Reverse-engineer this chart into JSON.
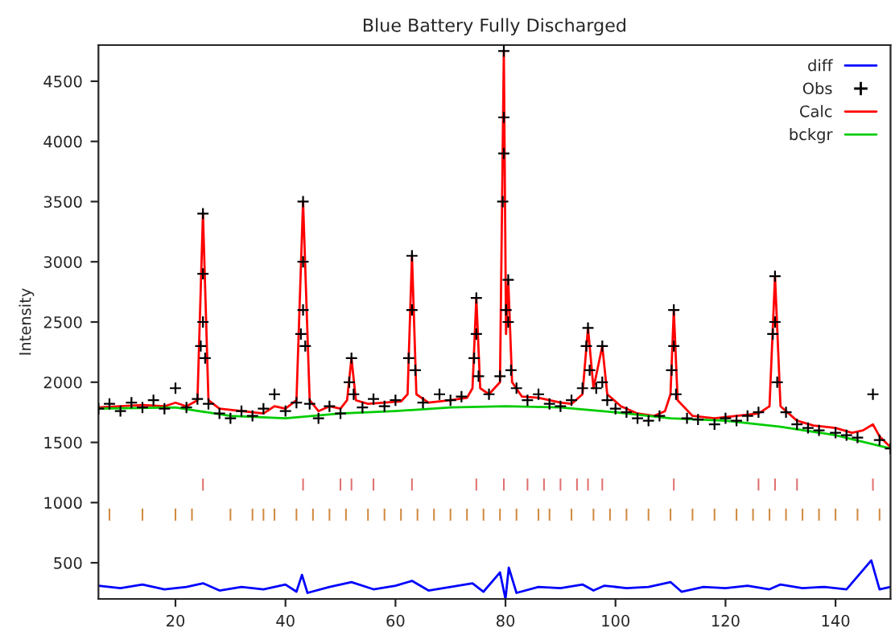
{
  "chart_data": {
    "type": "line",
    "title": "Blue Battery Fully Discharged",
    "ylabel": "Intensity",
    "xlim": [
      6,
      150
    ],
    "ylim": [
      200,
      4800
    ],
    "xticks": [
      20,
      40,
      60,
      80,
      100,
      120,
      140
    ],
    "yticks": [
      500,
      1000,
      1500,
      2000,
      2500,
      3000,
      3500,
      4000,
      4500
    ],
    "grid": false,
    "legend": "top right",
    "series": [
      {
        "name": "diff",
        "color": "#0000ff",
        "x": [
          6,
          10,
          14,
          18,
          22,
          25,
          28,
          32,
          36,
          40,
          42,
          43,
          44,
          48,
          52,
          56,
          60,
          63,
          66,
          70,
          74,
          76,
          79,
          80,
          80.6,
          82,
          86,
          90,
          94,
          96,
          98,
          102,
          106,
          110,
          112,
          116,
          120,
          124,
          128,
          130,
          134,
          138,
          142,
          146.5,
          148,
          150
        ],
        "values": [
          310,
          290,
          320,
          280,
          300,
          330,
          270,
          300,
          280,
          320,
          260,
          400,
          250,
          300,
          340,
          280,
          310,
          350,
          270,
          300,
          330,
          260,
          420,
          200,
          460,
          250,
          300,
          290,
          320,
          270,
          310,
          290,
          300,
          340,
          260,
          300,
          290,
          310,
          280,
          320,
          290,
          300,
          280,
          520,
          280,
          300
        ]
      },
      {
        "name": "Obs",
        "type": "scatter",
        "marker": "cross",
        "color": "#000000",
        "x": [
          6,
          8,
          10,
          12,
          14,
          16,
          18,
          20,
          22,
          24,
          24.6,
          25,
          25,
          25,
          25.4,
          26,
          28,
          30,
          32,
          34,
          36,
          38,
          40,
          42,
          42.8,
          43.2,
          43.2,
          43.2,
          43.6,
          44.4,
          46,
          48,
          50,
          51.6,
          52,
          52.4,
          54,
          56,
          58,
          60,
          62.4,
          63,
          63,
          63.6,
          65,
          68,
          70,
          72,
          74.3,
          74.7,
          74.7,
          75.1,
          77,
          79,
          79.5,
          79.7,
          79.7,
          79.7,
          80.1,
          80.5,
          80.5,
          81,
          82,
          84,
          86,
          88,
          90,
          92,
          94,
          94.7,
          95,
          95.3,
          96.5,
          97.6,
          97.6,
          98.5,
          100,
          102,
          104,
          106,
          108,
          110.2,
          110.6,
          110.6,
          111,
          113,
          115,
          118,
          120,
          122,
          124,
          126,
          128.6,
          129,
          129,
          129.4,
          131,
          133,
          135,
          137,
          140,
          142,
          144,
          146.8,
          148,
          150
        ],
        "values": [
          1780,
          1820,
          1760,
          1830,
          1790,
          1850,
          1780,
          1950,
          1790,
          1860,
          2300,
          3400,
          2900,
          2500,
          2200,
          1820,
          1740,
          1700,
          1760,
          1720,
          1780,
          1900,
          1760,
          1830,
          2400,
          3500,
          3000,
          2600,
          2300,
          1820,
          1700,
          1800,
          1740,
          2000,
          2200,
          1900,
          1790,
          1860,
          1800,
          1850,
          2200,
          3050,
          2600,
          2100,
          1830,
          1900,
          1850,
          1880,
          2200,
          2700,
          2400,
          2050,
          1900,
          2050,
          3500,
          4750,
          4200,
          3900,
          2600,
          2850,
          2500,
          2100,
          1950,
          1850,
          1900,
          1820,
          1800,
          1850,
          1950,
          2300,
          2450,
          2100,
          1950,
          2300,
          2000,
          1850,
          1780,
          1750,
          1700,
          1680,
          1720,
          2100,
          2600,
          2300,
          1900,
          1700,
          1690,
          1650,
          1700,
          1680,
          1720,
          1750,
          2400,
          2880,
          2500,
          2000,
          1750,
          1650,
          1620,
          1600,
          1580,
          1560,
          1540,
          1900,
          1520,
          1450
        ]
      },
      {
        "name": "Calc",
        "color": "#ff0000",
        "x": [
          6,
          10,
          14,
          18,
          20,
          22,
          24,
          25,
          26,
          28,
          32,
          36,
          38,
          40,
          42,
          43.2,
          44.4,
          46,
          48,
          50,
          51.2,
          52,
          52.8,
          55,
          58,
          61,
          62.2,
          63,
          63.8,
          66,
          70,
          73,
          74,
          74.7,
          75.4,
          77,
          79,
          79.7,
          80.1,
          80.5,
          81.2,
          83,
          86,
          88,
          90,
          92,
          94,
          95,
          96,
          97.6,
          98.5,
          101,
          104,
          107,
          109,
          110,
          110.6,
          111.3,
          114,
          118,
          122,
          126,
          128,
          129,
          130,
          133,
          136,
          140,
          143,
          145,
          146.8,
          148,
          150
        ],
        "values": [
          1790,
          1800,
          1810,
          1800,
          1830,
          1800,
          1850,
          3400,
          1850,
          1780,
          1760,
          1740,
          1800,
          1780,
          1850,
          3500,
          1850,
          1760,
          1800,
          1780,
          1850,
          2200,
          1850,
          1820,
          1830,
          1840,
          1900,
          3050,
          1900,
          1830,
          1850,
          1870,
          1950,
          2700,
          1950,
          1900,
          2000,
          4750,
          2400,
          2850,
          2000,
          1880,
          1870,
          1850,
          1830,
          1820,
          1900,
          2450,
          1950,
          2300,
          1900,
          1800,
          1740,
          1720,
          1760,
          1900,
          2600,
          1850,
          1720,
          1700,
          1720,
          1740,
          1800,
          2880,
          1800,
          1680,
          1640,
          1620,
          1580,
          1600,
          1650,
          1550,
          1460
        ]
      },
      {
        "name": "bckgr",
        "color": "#00cc00",
        "x": [
          6,
          20,
          30,
          40,
          50,
          60,
          70,
          80,
          90,
          100,
          110,
          120,
          130,
          140,
          150
        ],
        "values": [
          1780,
          1790,
          1720,
          1700,
          1740,
          1760,
          1790,
          1800,
          1790,
          1750,
          1700,
          1680,
          1630,
          1560,
          1450
        ]
      },
      {
        "type": "bar",
        "color": "#e07070",
        "x": [
          25,
          43.2,
          50,
          52,
          56,
          63,
          74.7,
          79.7,
          84,
          87,
          90,
          93,
          95,
          97.6,
          110.6,
          126,
          129,
          133,
          146.8
        ],
        "base": [
          1100,
          1100,
          1100,
          1100,
          1100,
          1100,
          1100,
          1100,
          1100,
          1100,
          1100,
          1100,
          1100,
          1100,
          1100,
          1100,
          1100,
          1100,
          1100
        ],
        "values": [
          100,
          100,
          100,
          100,
          100,
          100,
          100,
          100,
          100,
          100,
          100,
          100,
          100,
          100,
          100,
          100,
          100,
          100,
          100
        ]
      },
      {
        "type": "bar",
        "color": "#d08a40",
        "x": [
          8,
          14,
          20,
          23,
          30,
          34,
          36,
          38,
          42,
          45,
          48,
          51,
          55,
          58,
          61,
          64,
          67,
          70,
          73,
          76,
          79,
          82,
          86,
          88,
          92,
          96,
          99,
          102,
          106,
          110,
          114,
          118,
          122,
          125,
          128,
          131,
          134,
          137,
          140,
          144,
          148
        ],
        "base": [
          850,
          850,
          850,
          850,
          850,
          850,
          850,
          850,
          850,
          850,
          850,
          850,
          850,
          850,
          850,
          850,
          850,
          850,
          850,
          850,
          850,
          850,
          850,
          850,
          850,
          850,
          850,
          850,
          850,
          850,
          850,
          850,
          850,
          850,
          850,
          850,
          850,
          850,
          850,
          850,
          850
        ],
        "values": [
          100,
          100,
          100,
          100,
          100,
          100,
          100,
          100,
          100,
          100,
          100,
          100,
          100,
          100,
          100,
          100,
          100,
          100,
          100,
          100,
          100,
          100,
          100,
          100,
          100,
          100,
          100,
          100,
          100,
          100,
          100,
          100,
          100,
          100,
          100,
          100,
          100,
          100,
          100,
          100,
          100
        ]
      }
    ]
  }
}
